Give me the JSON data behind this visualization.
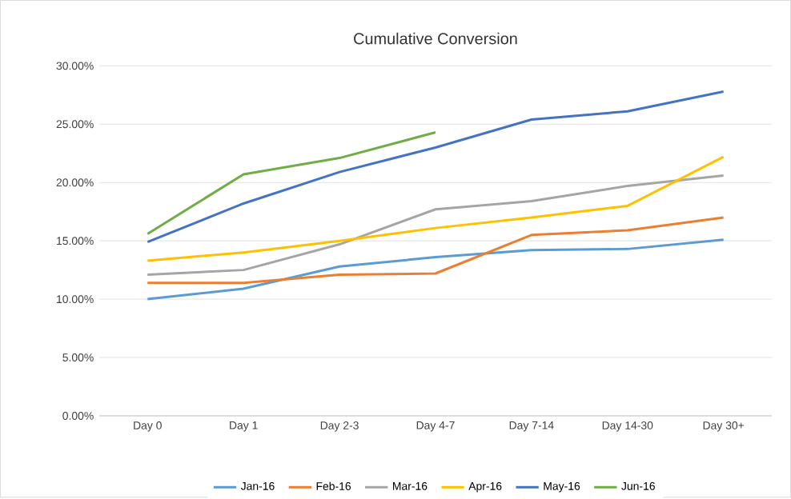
{
  "chart_data": {
    "type": "line",
    "title": "Cumulative Conversion",
    "categories": [
      "Day 0",
      "Day 1",
      "Day 2-3",
      "Day 4-7",
      "Day 7-14",
      "Day 14-30",
      "Day 30+"
    ],
    "series": [
      {
        "name": "Jan-16",
        "color": "#5b9bd5",
        "values": [
          10.0,
          10.9,
          12.8,
          13.6,
          14.2,
          14.3,
          15.1
        ]
      },
      {
        "name": "Feb-16",
        "color": "#ed7d31",
        "values": [
          11.4,
          11.4,
          12.1,
          12.2,
          15.5,
          15.9,
          17.0
        ]
      },
      {
        "name": "Mar-16",
        "color": "#a5a5a5",
        "values": [
          12.1,
          12.5,
          14.7,
          17.7,
          18.4,
          19.7,
          20.6
        ]
      },
      {
        "name": "Apr-16",
        "color": "#ffc000",
        "values": [
          13.3,
          14.0,
          15.0,
          16.1,
          17.0,
          18.0,
          22.2
        ]
      },
      {
        "name": "May-16",
        "color": "#4472c4",
        "values": [
          14.9,
          18.2,
          20.9,
          23.0,
          25.4,
          26.1,
          27.8
        ]
      },
      {
        "name": "Jun-16",
        "color": "#70ad47",
        "values": [
          15.6,
          20.7,
          22.1,
          24.3,
          null,
          null,
          null
        ]
      }
    ],
    "ylim": [
      0,
      30
    ],
    "yticks": [
      {
        "value": 0,
        "label": "0.00%"
      },
      {
        "value": 5,
        "label": "5.00%"
      },
      {
        "value": 10,
        "label": "10.00%"
      },
      {
        "value": 15,
        "label": "15.00%"
      },
      {
        "value": 20,
        "label": "20.00%"
      },
      {
        "value": 25,
        "label": "25.00%"
      },
      {
        "value": 30,
        "label": "30.00%"
      }
    ],
    "grid": "y",
    "legend": "bottom",
    "marker": "none",
    "line_style": "solid"
  }
}
